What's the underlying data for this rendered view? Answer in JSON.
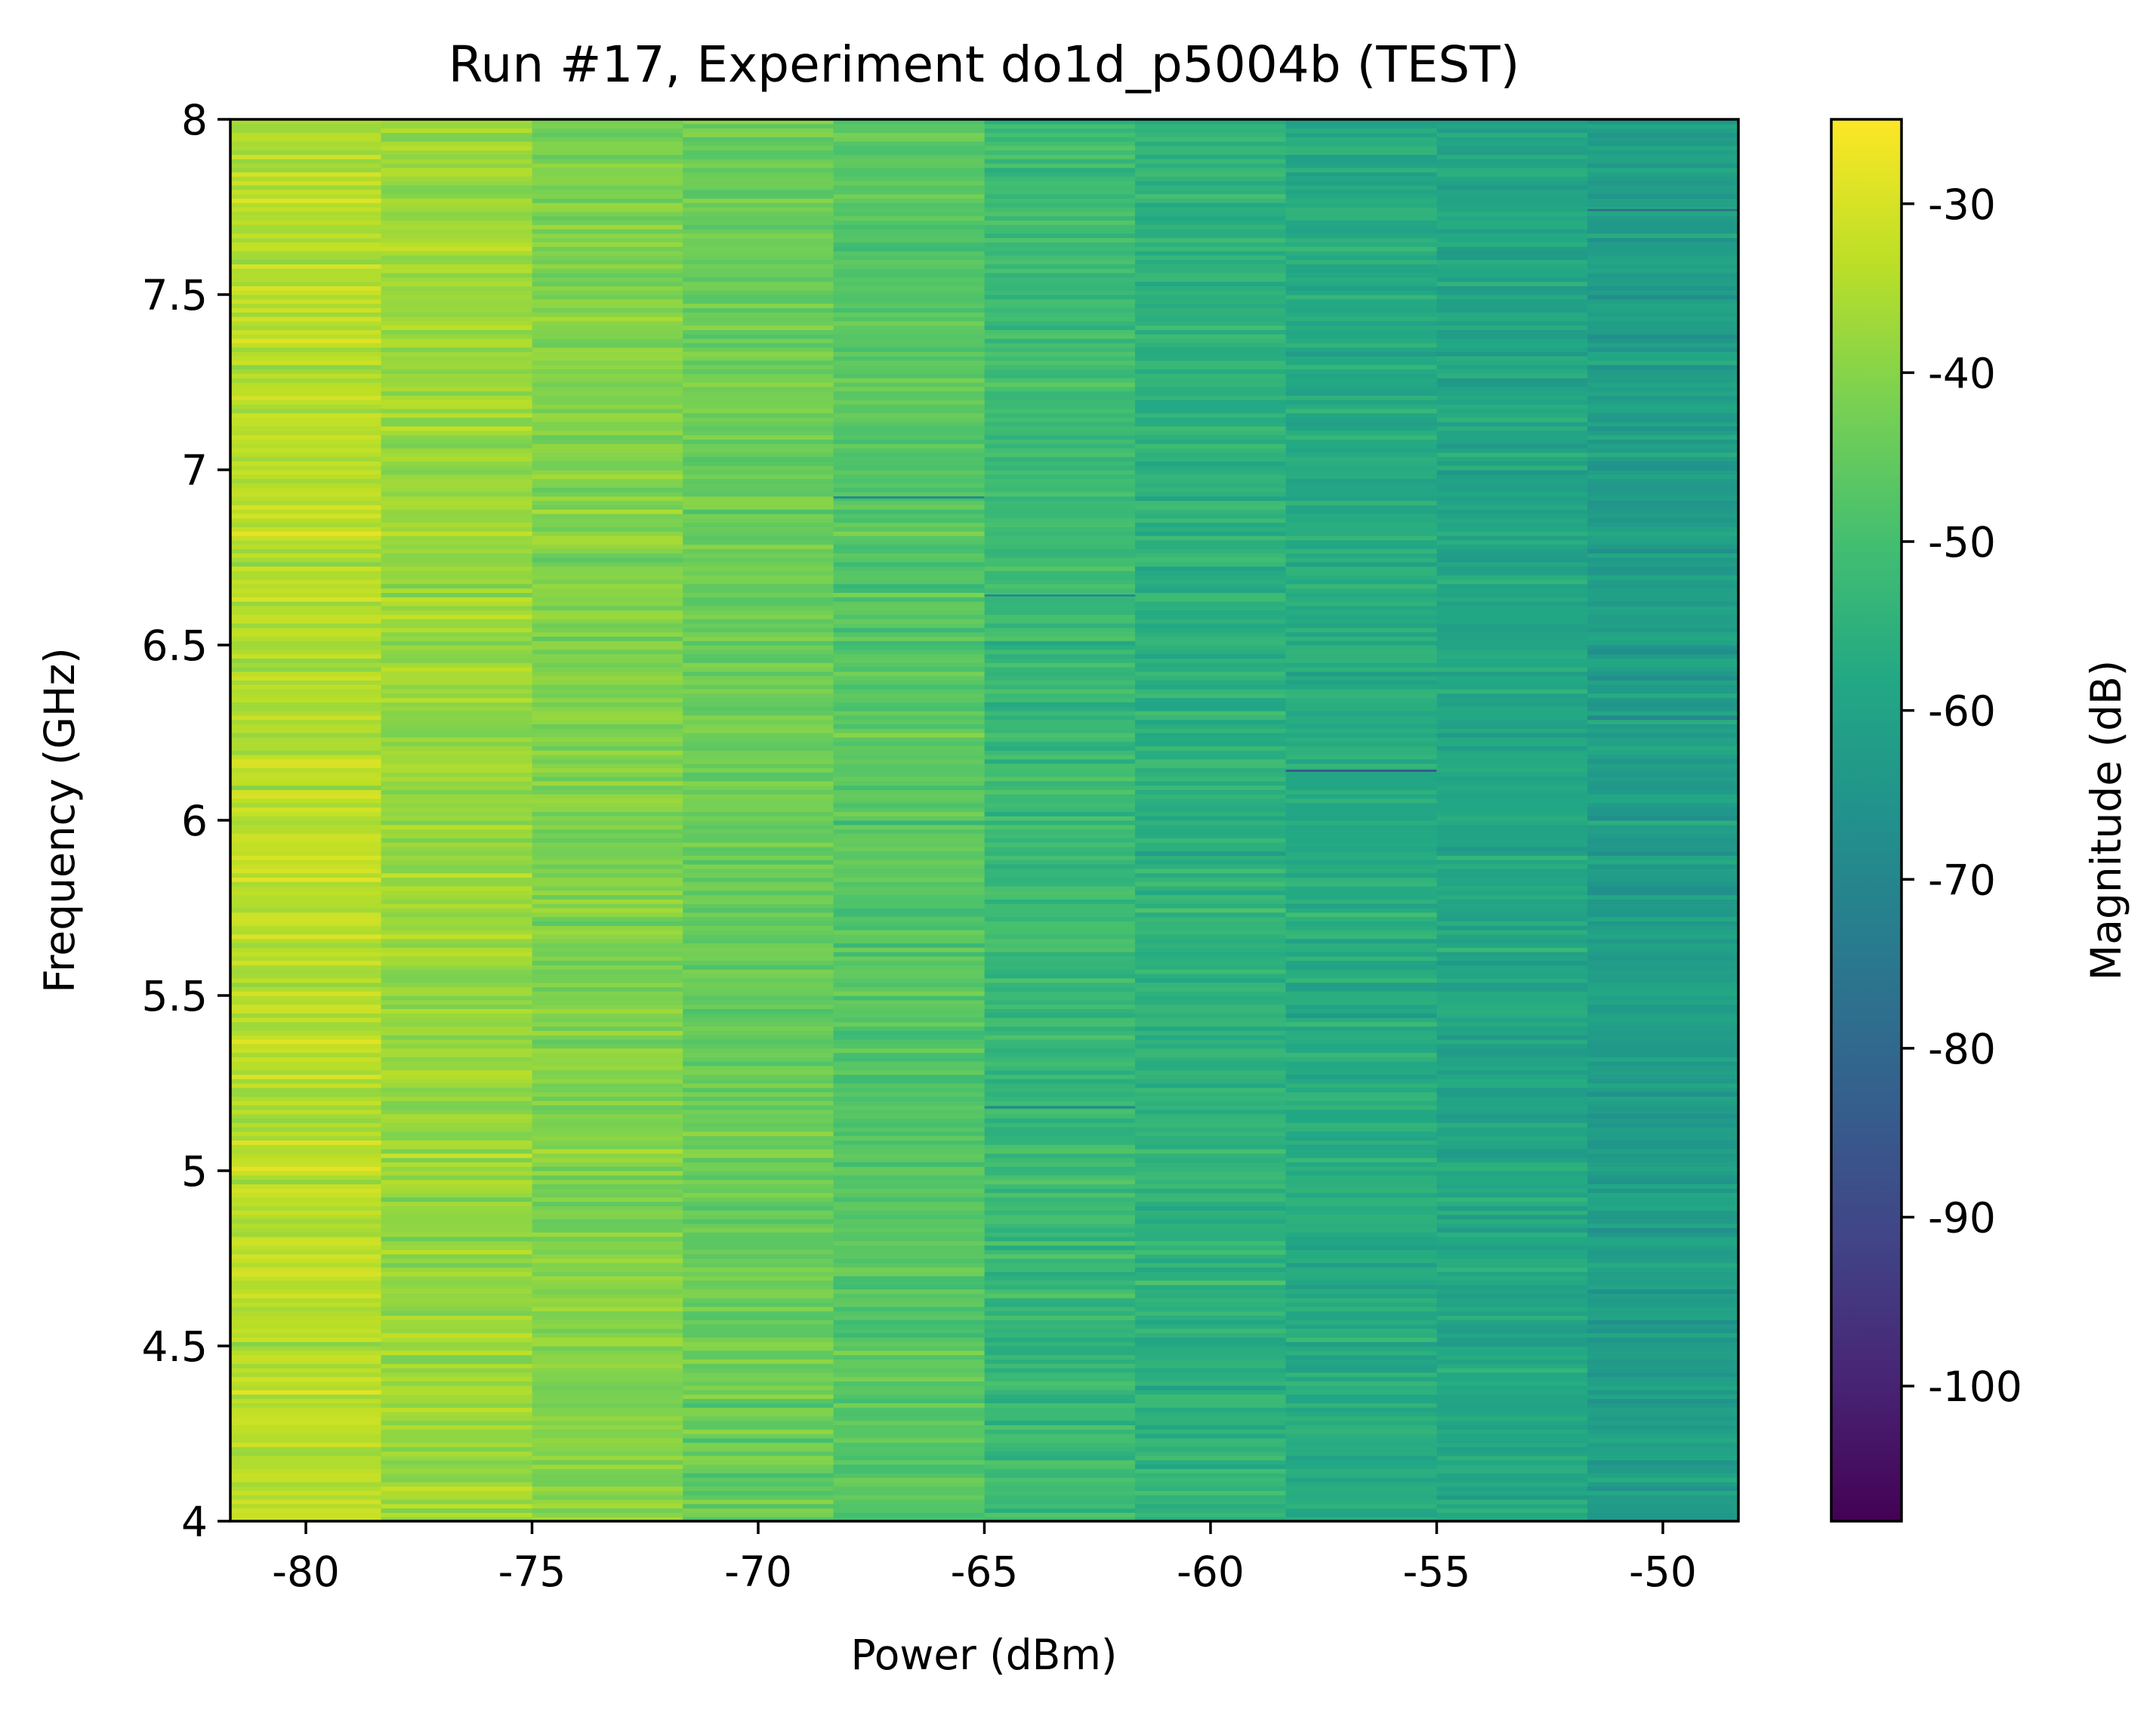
{
  "chart_data": {
    "type": "heatmap",
    "title": "Run #17, Experiment do1d_p5004b (TEST)",
    "xlabel": "Power (dBm)",
    "ylabel": "Frequency (GHz)",
    "colorbar_label": "Magnitude (dB)",
    "colormap": "viridis",
    "xlim": [
      -81.67,
      -48.33
    ],
    "ylim": [
      4,
      8
    ],
    "clim": [
      -108,
      -25
    ],
    "x": [
      -80,
      -76.67,
      -73.33,
      -70,
      -66.67,
      -63.33,
      -60,
      -56.67,
      -53.33,
      -50
    ],
    "column_mean_magnitude": [
      -34,
      -38,
      -41,
      -44,
      -47,
      -52,
      -55,
      -57,
      -59,
      -62
    ],
    "noise_std": 2.5,
    "anomalies": [
      {
        "x": -56.67,
        "y": 6.14,
        "value": -85
      },
      {
        "x": -50,
        "y": 7.74,
        "value": -78
      },
      {
        "x": -63.33,
        "y": 5.18,
        "value": -70
      },
      {
        "x": -66.67,
        "y": 6.92,
        "value": -68
      },
      {
        "x": -63.33,
        "y": 6.64,
        "value": -68
      }
    ],
    "x_ticks": [
      -80,
      -75,
      -70,
      -65,
      -60,
      -55,
      -50
    ],
    "x_tick_labels": [
      "-80",
      "-75",
      "-70",
      "-65",
      "-60",
      "-55",
      "-50"
    ],
    "y_ticks": [
      4,
      4.5,
      5,
      5.5,
      6,
      6.5,
      7,
      7.5,
      8
    ],
    "y_tick_labels": [
      "4",
      "4.5",
      "5",
      "5.5",
      "6",
      "6.5",
      "7",
      "7.5",
      "8"
    ],
    "colorbar_ticks": [
      -100,
      -90,
      -80,
      -70,
      -60,
      -50,
      -40,
      -30
    ],
    "colorbar_tick_labels": [
      "-100",
      "-90",
      "-80",
      "-70",
      "-60",
      "-50",
      "-40",
      "-30"
    ]
  }
}
